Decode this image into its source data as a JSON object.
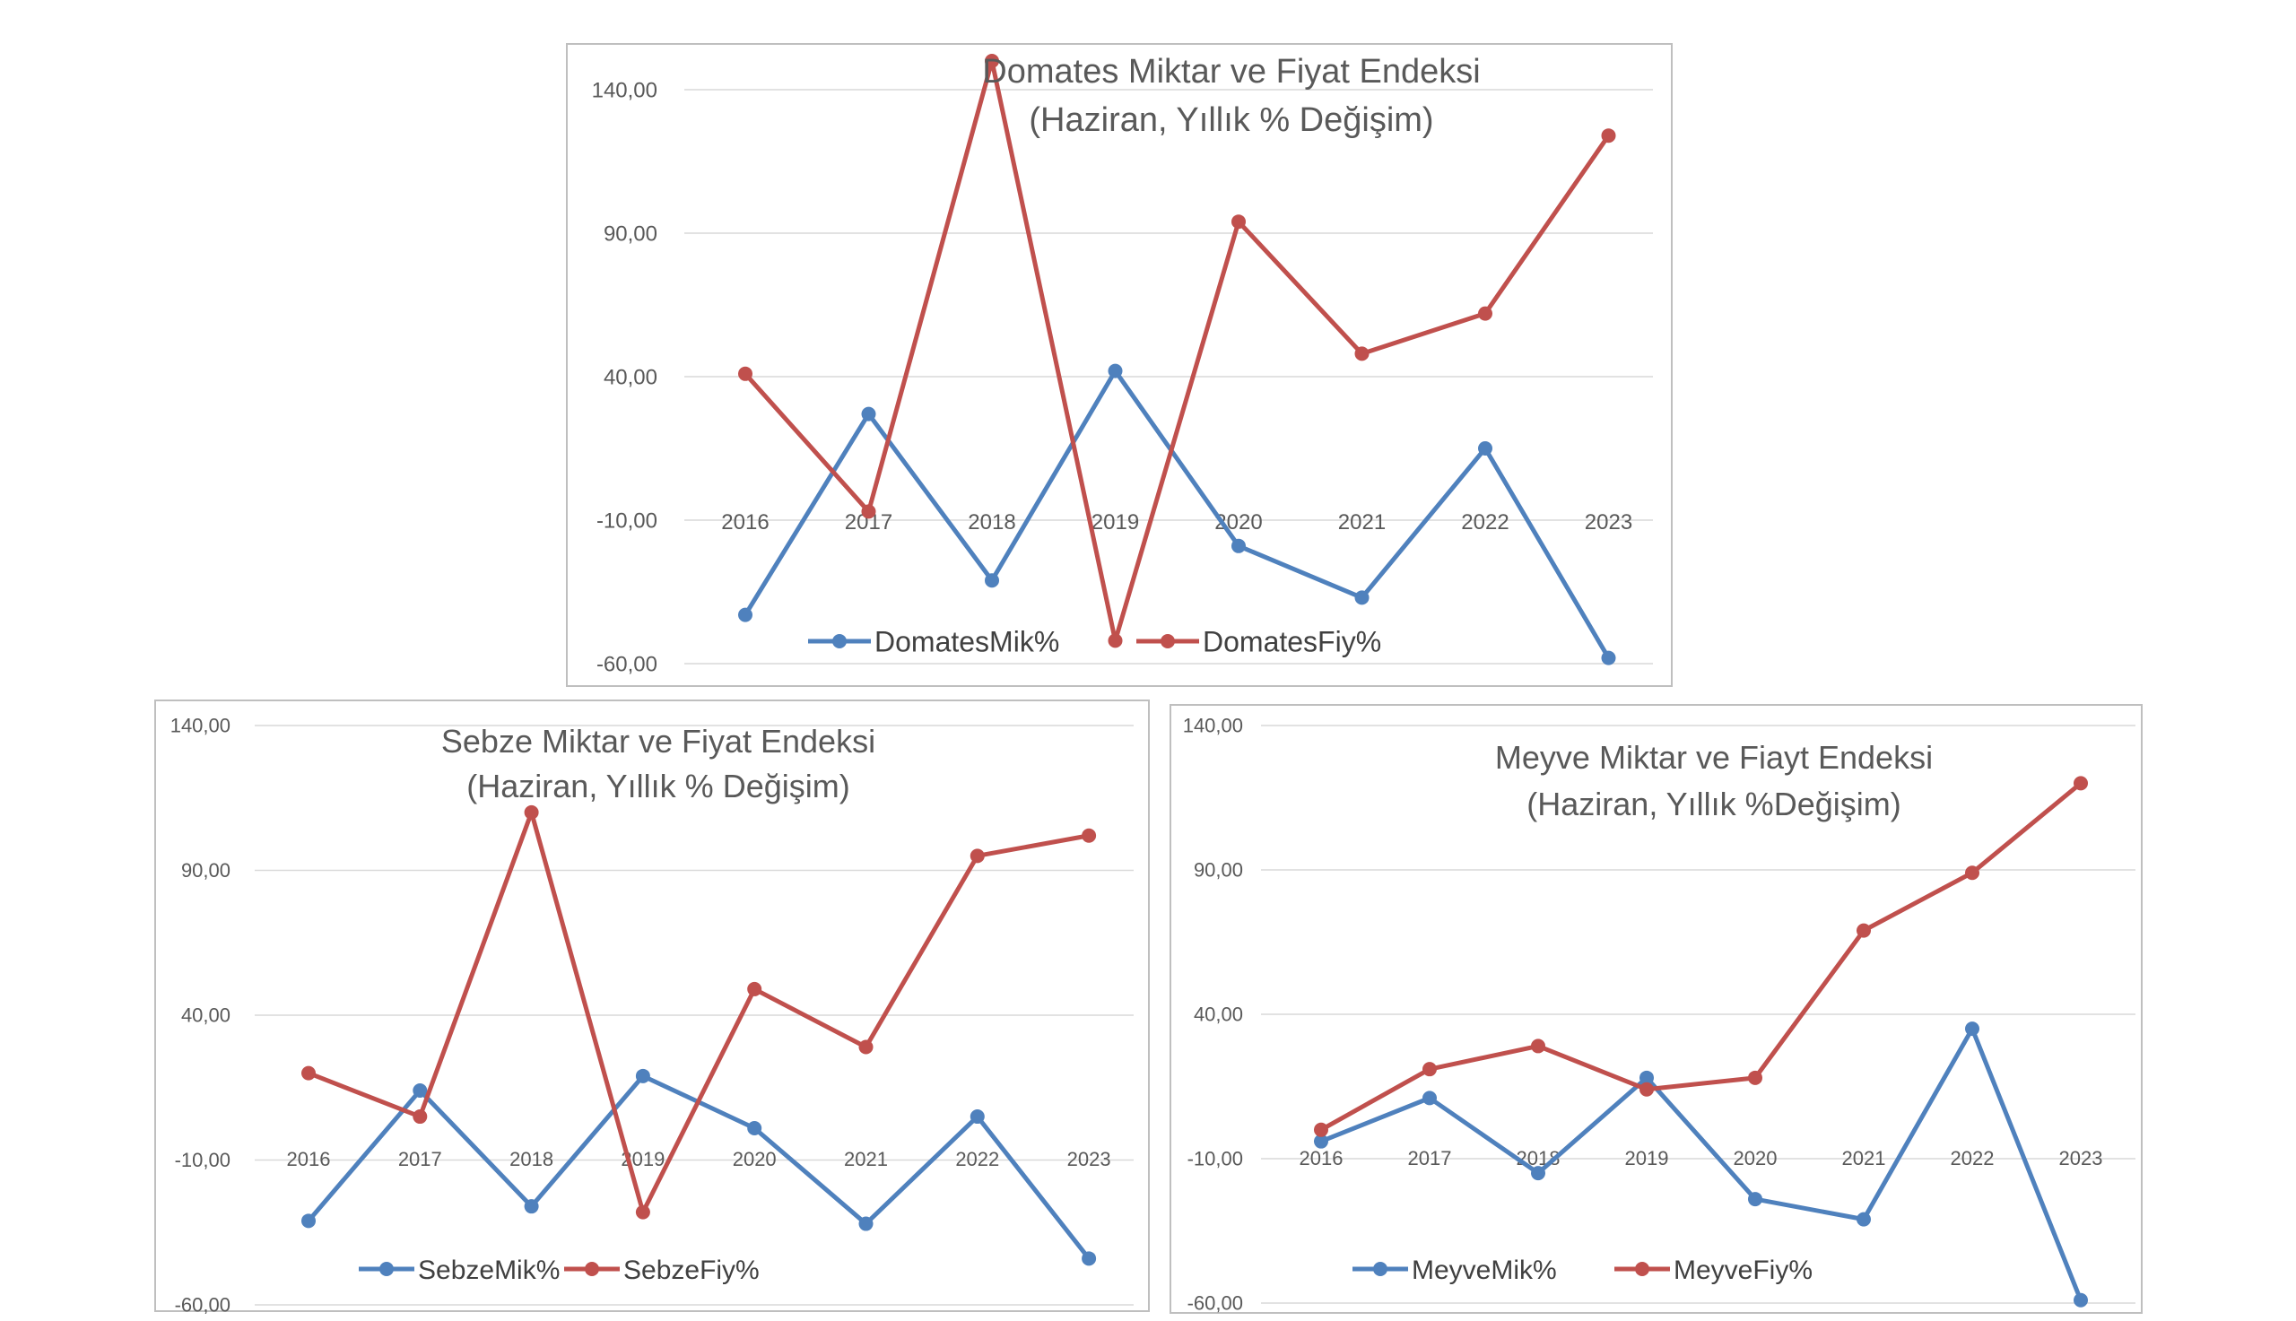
{
  "colors": {
    "mik": "#4f81bd",
    "fiy": "#c0504d",
    "grid": "#d9d9d9",
    "text": "#595959"
  },
  "chart_data": [
    {
      "id": "domates",
      "type": "line",
      "title_line1": "Domates Miktar ve Fiyat Endeksi",
      "title_line2": "(Haziran, Yıllık % Değişim)",
      "categories": [
        "2016",
        "2017",
        "2018",
        "2019",
        "2020",
        "2021",
        "2022",
        "2023"
      ],
      "ylim": [
        -60,
        140
      ],
      "yticks": [
        -60,
        -10,
        40,
        90,
        140
      ],
      "ytick_labels": [
        "-60,00",
        "-10,00",
        "40,00",
        "90,00",
        "140,00"
      ],
      "grid": true,
      "legend": "bottom",
      "series": [
        {
          "name": "DomatesMik%",
          "color": "#4f81bd",
          "values": [
            -43,
            27,
            -31,
            42,
            -19,
            -37,
            15,
            -58
          ]
        },
        {
          "name": "DomatesFiy%",
          "color": "#c0504d",
          "values": [
            41,
            -7,
            150,
            -52,
            94,
            48,
            62,
            124
          ]
        }
      ]
    },
    {
      "id": "sebze",
      "type": "line",
      "title_line1": "Sebze Miktar ve Fiyat Endeksi",
      "title_line2": "(Haziran, Yıllık % Değişim)",
      "categories": [
        "2016",
        "2017",
        "2018",
        "2019",
        "2020",
        "2021",
        "2022",
        "2023"
      ],
      "ylim": [
        -60,
        140
      ],
      "yticks": [
        -60,
        -10,
        40,
        90,
        140
      ],
      "ytick_labels": [
        "-60,00",
        "-10,00",
        "40,00",
        "90,00",
        "140,00"
      ],
      "grid": true,
      "legend": "bottom",
      "series": [
        {
          "name": "SebzeMik%",
          "color": "#4f81bd",
          "values": [
            -31,
            14,
            -26,
            19,
            1,
            -32,
            5,
            -44
          ]
        },
        {
          "name": "SebzeFiy%",
          "color": "#c0504d",
          "values": [
            20,
            5,
            110,
            -28,
            49,
            29,
            95,
            102
          ]
        }
      ]
    },
    {
      "id": "meyve",
      "type": "line",
      "title_line1": "Meyve Miktar ve Fiayt Endeksi",
      "title_line2": "(Haziran, Yıllık %Değişim)",
      "categories": [
        "2016",
        "2017",
        "2018",
        "2019",
        "2020",
        "2021",
        "2022",
        "2023"
      ],
      "ylim": [
        -60,
        140
      ],
      "yticks": [
        -60,
        -10,
        40,
        90,
        140
      ],
      "ytick_labels": [
        "-60,00",
        "-10,00",
        "40,00",
        "90,00",
        "140,00"
      ],
      "grid": true,
      "legend": "bottom",
      "series": [
        {
          "name": "MeyveMik%",
          "color": "#4f81bd",
          "values": [
            -4,
            11,
            -15,
            18,
            -24,
            -31,
            35,
            -59
          ]
        },
        {
          "name": "MeyveFiy%",
          "color": "#c0504d",
          "values": [
            0,
            21,
            29,
            14,
            18,
            69,
            89,
            120
          ]
        }
      ]
    }
  ]
}
